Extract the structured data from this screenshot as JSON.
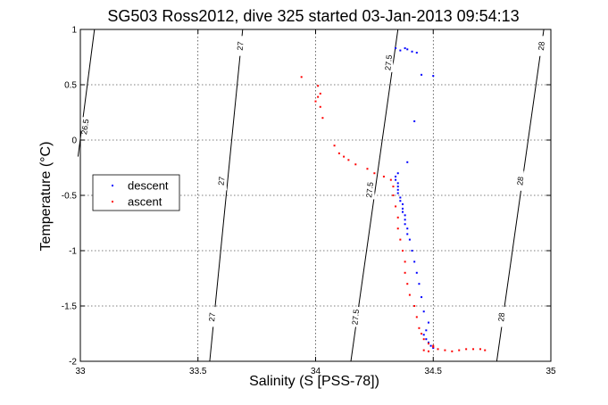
{
  "chart_data": {
    "type": "scatter",
    "title": "SG503 Ross2012, dive 325 started 03-Jan-2013 09:54:13",
    "xlabel": "Salinity (S [PSS-78])",
    "ylabel": "Temperature (°C)",
    "xlim": [
      33,
      35
    ],
    "ylim": [
      -2,
      1
    ],
    "xticks": [
      33,
      33.5,
      34,
      34.5,
      35
    ],
    "xtick_labels": [
      "33",
      "33.5",
      "34",
      "34.5",
      "35"
    ],
    "yticks": [
      -2,
      -1.5,
      -1,
      -0.5,
      0,
      0.5,
      1
    ],
    "ytick_labels": [
      "-2",
      "-1.5",
      "-1",
      "-0.5",
      "0",
      "0.5",
      "1"
    ],
    "grid": true,
    "legend_position": "middle-left",
    "series": [
      {
        "name": "descent",
        "color": "#0000ff",
        "points": [
          [
            34.34,
            0.83
          ],
          [
            34.36,
            0.81
          ],
          [
            34.38,
            0.83
          ],
          [
            34.39,
            0.82
          ],
          [
            34.41,
            0.8
          ],
          [
            34.43,
            0.79
          ],
          [
            34.45,
            0.59
          ],
          [
            34.5,
            0.58
          ],
          [
            34.42,
            0.17
          ],
          [
            34.39,
            -0.2
          ],
          [
            34.35,
            -0.3
          ],
          [
            34.34,
            -0.33
          ],
          [
            34.34,
            -0.36
          ],
          [
            34.35,
            -0.39
          ],
          [
            34.35,
            -0.42
          ],
          [
            34.35,
            -0.45
          ],
          [
            34.35,
            -0.48
          ],
          [
            34.36,
            -0.52
          ],
          [
            34.36,
            -0.55
          ],
          [
            34.37,
            -0.58
          ],
          [
            34.37,
            -0.62
          ],
          [
            34.37,
            -0.65
          ],
          [
            34.38,
            -0.68
          ],
          [
            34.38,
            -0.72
          ],
          [
            34.38,
            -0.76
          ],
          [
            34.39,
            -0.8
          ],
          [
            34.39,
            -0.85
          ],
          [
            34.4,
            -0.9
          ],
          [
            34.41,
            -1.0
          ],
          [
            34.42,
            -1.1
          ],
          [
            34.43,
            -1.2
          ],
          [
            34.44,
            -1.3
          ],
          [
            34.45,
            -1.42
          ],
          [
            34.46,
            -1.55
          ],
          [
            34.48,
            -1.65
          ],
          [
            34.47,
            -1.72
          ],
          [
            34.46,
            -1.76
          ],
          [
            34.47,
            -1.8
          ],
          [
            34.48,
            -1.83
          ],
          [
            34.49,
            -1.86
          ],
          [
            34.5,
            -1.88
          ]
        ]
      },
      {
        "name": "ascent",
        "color": "#ff0000",
        "points": [
          [
            33.94,
            0.57
          ],
          [
            34.01,
            0.49
          ],
          [
            34.02,
            0.42
          ],
          [
            34.01,
            0.39
          ],
          [
            34.0,
            0.35
          ],
          [
            34.02,
            0.3
          ],
          [
            34.03,
            0.2
          ],
          [
            34.08,
            -0.05
          ],
          [
            34.1,
            -0.12
          ],
          [
            34.12,
            -0.15
          ],
          [
            34.14,
            -0.18
          ],
          [
            34.17,
            -0.22
          ],
          [
            34.22,
            -0.26
          ],
          [
            34.25,
            -0.3
          ],
          [
            34.29,
            -0.33
          ],
          [
            34.32,
            -0.36
          ],
          [
            34.33,
            -0.42
          ],
          [
            34.33,
            -0.5
          ],
          [
            34.34,
            -0.6
          ],
          [
            34.35,
            -0.7
          ],
          [
            34.35,
            -0.8
          ],
          [
            34.36,
            -0.9
          ],
          [
            34.37,
            -1.0
          ],
          [
            34.38,
            -1.1
          ],
          [
            34.38,
            -1.2
          ],
          [
            34.39,
            -1.3
          ],
          [
            34.4,
            -1.4
          ],
          [
            34.42,
            -1.5
          ],
          [
            34.43,
            -1.6
          ],
          [
            34.44,
            -1.7
          ],
          [
            34.45,
            -1.75
          ],
          [
            34.46,
            -1.8
          ],
          [
            34.48,
            -1.84
          ],
          [
            34.5,
            -1.87
          ],
          [
            34.52,
            -1.89
          ],
          [
            34.55,
            -1.9
          ],
          [
            34.58,
            -1.91
          ],
          [
            34.61,
            -1.9
          ],
          [
            34.64,
            -1.89
          ],
          [
            34.67,
            -1.89
          ],
          [
            34.7,
            -1.89
          ],
          [
            34.72,
            -1.9
          ],
          [
            34.46,
            -1.9
          ],
          [
            34.48,
            -1.91
          ],
          [
            34.5,
            -1.86
          ]
        ]
      }
    ],
    "contours": [
      {
        "label": "26.5",
        "points": [
          [
            33.06,
            1.0
          ],
          [
            32.99,
            -0.15
          ]
        ]
      },
      {
        "label": "27",
        "points": [
          [
            33.69,
            1.0
          ],
          [
            33.55,
            -2.0
          ]
        ]
      },
      {
        "label": "27.5",
        "points": [
          [
            34.35,
            1.0
          ],
          [
            34.15,
            -2.0
          ]
        ]
      },
      {
        "label": "28",
        "points": [
          [
            34.97,
            1.0
          ],
          [
            34.77,
            -2.0
          ]
        ]
      }
    ],
    "contour_tags": [
      {
        "text": "26.5",
        "x": 33.02,
        "y": 0.12,
        "angle": 82
      },
      {
        "text": "27",
        "x": 33.6,
        "y": -0.37,
        "angle": 84
      },
      {
        "text": "27",
        "x": 33.56,
        "y": -1.6,
        "angle": 84
      },
      {
        "text": "27",
        "x": 33.68,
        "y": 0.85,
        "angle": 84
      },
      {
        "text": "27.5",
        "x": 34.23,
        "y": -0.45,
        "angle": 84
      },
      {
        "text": "27.5",
        "x": 34.31,
        "y": 0.7,
        "angle": 84
      },
      {
        "text": "27.5",
        "x": 34.17,
        "y": -1.6,
        "angle": 84
      },
      {
        "text": "28",
        "x": 34.87,
        "y": -0.37,
        "angle": 84
      },
      {
        "text": "28",
        "x": 34.96,
        "y": 0.85,
        "angle": 84
      },
      {
        "text": "28",
        "x": 34.79,
        "y": -1.6,
        "angle": 84
      }
    ]
  }
}
